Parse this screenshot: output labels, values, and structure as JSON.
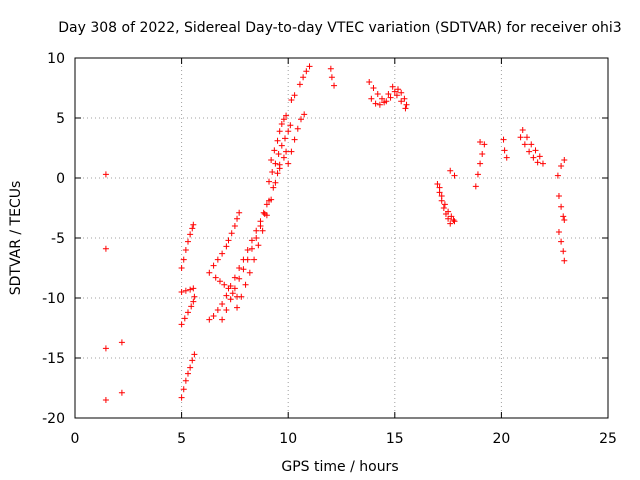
{
  "chart_data": {
    "type": "scatter",
    "title": "Day 308 of 2022, Sidereal Day-to-day VTEC variation (SDTVAR) for receiver ohi3",
    "xlabel": "GPS time / hours",
    "ylabel": "SDTVAR / TECUs",
    "xlim": [
      0,
      25
    ],
    "ylim": [
      -20,
      10
    ],
    "xticks": [
      0,
      5,
      10,
      15,
      20,
      25
    ],
    "yticks": [
      -20,
      -15,
      -10,
      -5,
      0,
      5,
      10
    ],
    "xtick_labels": [
      "0",
      "5",
      "10",
      "15",
      "20",
      "25"
    ],
    "ytick_labels": [
      "-20",
      "-15",
      "-10",
      "-5",
      "0",
      "5",
      "10"
    ],
    "grid": true,
    "marker": "+",
    "series": [
      {
        "name": "SDTVAR",
        "color": "#ff0000",
        "points": [
          [
            1.45,
            0.3
          ],
          [
            1.45,
            -5.9
          ],
          [
            1.45,
            -14.2
          ],
          [
            1.45,
            -18.5
          ],
          [
            2.2,
            -13.7
          ],
          [
            2.2,
            -17.9
          ],
          [
            5.0,
            -18.3
          ],
          [
            5.1,
            -17.6
          ],
          [
            5.2,
            -16.9
          ],
          [
            5.3,
            -16.3
          ],
          [
            5.4,
            -15.8
          ],
          [
            5.5,
            -15.2
          ],
          [
            5.6,
            -14.7
          ],
          [
            5.0,
            -12.2
          ],
          [
            5.15,
            -11.7
          ],
          [
            5.3,
            -11.2
          ],
          [
            5.45,
            -10.7
          ],
          [
            5.55,
            -10.3
          ],
          [
            5.6,
            -9.9
          ],
          [
            5.0,
            -9.5
          ],
          [
            5.2,
            -9.4
          ],
          [
            5.4,
            -9.3
          ],
          [
            5.55,
            -9.2
          ],
          [
            5.0,
            -7.5
          ],
          [
            5.1,
            -6.8
          ],
          [
            5.2,
            -6.0
          ],
          [
            5.3,
            -5.3
          ],
          [
            5.4,
            -4.7
          ],
          [
            5.5,
            -4.2
          ],
          [
            5.55,
            -3.9
          ],
          [
            6.3,
            -11.8
          ],
          [
            6.5,
            -11.5
          ],
          [
            6.7,
            -11.0
          ],
          [
            6.9,
            -10.5
          ],
          [
            7.1,
            -9.8
          ],
          [
            7.3,
            -9.0
          ],
          [
            7.5,
            -8.3
          ],
          [
            7.7,
            -7.5
          ],
          [
            7.9,
            -6.8
          ],
          [
            8.1,
            -6.0
          ],
          [
            8.3,
            -5.2
          ],
          [
            8.5,
            -4.4
          ],
          [
            8.7,
            -3.6
          ],
          [
            8.85,
            -2.9
          ],
          [
            9.0,
            -2.2
          ],
          [
            6.3,
            -7.9
          ],
          [
            6.5,
            -7.3
          ],
          [
            6.7,
            -6.8
          ],
          [
            6.9,
            -6.3
          ],
          [
            7.1,
            -5.7
          ],
          [
            7.2,
            -5.2
          ],
          [
            7.35,
            -4.6
          ],
          [
            7.5,
            -4.0
          ],
          [
            7.6,
            -3.4
          ],
          [
            7.7,
            -2.9
          ],
          [
            6.9,
            -11.8
          ],
          [
            7.1,
            -11.0
          ],
          [
            7.3,
            -10.1
          ],
          [
            7.5,
            -9.2
          ],
          [
            7.7,
            -8.4
          ],
          [
            7.9,
            -7.6
          ],
          [
            8.1,
            -6.8
          ],
          [
            8.3,
            -5.9
          ],
          [
            8.5,
            -5.0
          ],
          [
            8.7,
            -4.0
          ],
          [
            8.9,
            -3.0
          ],
          [
            9.1,
            -1.9
          ],
          [
            9.3,
            -0.8
          ],
          [
            9.5,
            0.4
          ],
          [
            9.6,
            1.1
          ],
          [
            6.6,
            -8.3
          ],
          [
            6.8,
            -8.6
          ],
          [
            7.0,
            -8.9
          ],
          [
            7.2,
            -9.2
          ],
          [
            7.4,
            -9.6
          ],
          [
            7.6,
            -9.9
          ],
          [
            7.6,
            -10.8
          ],
          [
            7.8,
            -9.9
          ],
          [
            8.0,
            -8.9
          ],
          [
            8.2,
            -7.9
          ],
          [
            8.4,
            -6.8
          ],
          [
            8.6,
            -5.6
          ],
          [
            8.8,
            -4.4
          ],
          [
            9.0,
            -3.1
          ],
          [
            9.2,
            -1.8
          ],
          [
            9.4,
            -0.4
          ],
          [
            9.6,
            0.8
          ],
          [
            9.8,
            1.7
          ],
          [
            9.9,
            2.2
          ],
          [
            9.2,
            1.5
          ],
          [
            9.35,
            2.3
          ],
          [
            9.5,
            3.1
          ],
          [
            9.6,
            3.9
          ],
          [
            9.7,
            4.5
          ],
          [
            9.8,
            4.9
          ],
          [
            9.9,
            5.2
          ],
          [
            9.1,
            -0.3
          ],
          [
            9.25,
            0.5
          ],
          [
            9.4,
            1.2
          ],
          [
            9.55,
            2.0
          ],
          [
            9.7,
            2.7
          ],
          [
            9.85,
            3.3
          ],
          [
            10.0,
            3.9
          ],
          [
            10.1,
            4.4
          ],
          [
            10.0,
            1.2
          ],
          [
            10.15,
            2.2
          ],
          [
            10.3,
            3.2
          ],
          [
            10.45,
            4.1
          ],
          [
            10.6,
            4.9
          ],
          [
            10.75,
            5.3
          ],
          [
            10.15,
            6.5
          ],
          [
            10.3,
            6.9
          ],
          [
            10.55,
            7.8
          ],
          [
            10.7,
            8.4
          ],
          [
            10.85,
            8.9
          ],
          [
            11.0,
            9.3
          ],
          [
            12.0,
            9.1
          ],
          [
            12.05,
            8.4
          ],
          [
            12.15,
            7.7
          ],
          [
            13.8,
            8.0
          ],
          [
            14.0,
            7.5
          ],
          [
            14.2,
            7.0
          ],
          [
            14.4,
            6.6
          ],
          [
            14.6,
            6.4
          ],
          [
            14.8,
            6.7
          ],
          [
            15.0,
            7.2
          ],
          [
            15.15,
            7.4
          ],
          [
            15.3,
            7.1
          ],
          [
            15.45,
            6.6
          ],
          [
            15.55,
            6.1
          ],
          [
            13.9,
            6.6
          ],
          [
            14.1,
            6.2
          ],
          [
            14.3,
            6.1
          ],
          [
            14.5,
            6.3
          ],
          [
            14.7,
            7.0
          ],
          [
            14.9,
            7.6
          ],
          [
            15.1,
            6.9
          ],
          [
            15.3,
            6.4
          ],
          [
            15.5,
            5.8
          ],
          [
            17.0,
            -0.5
          ],
          [
            17.1,
            -1.2
          ],
          [
            17.2,
            -1.9
          ],
          [
            17.3,
            -2.5
          ],
          [
            17.4,
            -3.0
          ],
          [
            17.5,
            -3.4
          ],
          [
            17.6,
            -3.8
          ],
          [
            17.75,
            -3.5
          ],
          [
            17.1,
            -0.8
          ],
          [
            17.2,
            -1.5
          ],
          [
            17.35,
            -2.2
          ],
          [
            17.5,
            -2.8
          ],
          [
            17.65,
            -3.2
          ],
          [
            17.8,
            -3.6
          ],
          [
            17.6,
            0.6
          ],
          [
            17.8,
            0.2
          ],
          [
            18.8,
            -0.7
          ],
          [
            18.9,
            0.3
          ],
          [
            19.0,
            1.2
          ],
          [
            19.1,
            2.0
          ],
          [
            19.0,
            3.0
          ],
          [
            19.2,
            2.8
          ],
          [
            20.1,
            3.2
          ],
          [
            20.15,
            2.3
          ],
          [
            20.25,
            1.7
          ],
          [
            21.0,
            4.0
          ],
          [
            21.2,
            3.4
          ],
          [
            21.4,
            2.8
          ],
          [
            21.6,
            2.3
          ],
          [
            21.8,
            1.8
          ],
          [
            21.95,
            1.2
          ],
          [
            20.9,
            3.4
          ],
          [
            21.1,
            2.8
          ],
          [
            21.3,
            2.2
          ],
          [
            21.5,
            1.7
          ],
          [
            21.7,
            1.3
          ],
          [
            22.7,
            -1.5
          ],
          [
            22.8,
            -2.4
          ],
          [
            22.9,
            -3.2
          ],
          [
            22.95,
            -3.5
          ],
          [
            22.7,
            -4.5
          ],
          [
            22.8,
            -5.3
          ],
          [
            22.9,
            -6.1
          ],
          [
            22.95,
            -6.9
          ],
          [
            22.65,
            0.2
          ],
          [
            22.8,
            1.0
          ],
          [
            22.95,
            1.5
          ]
        ]
      }
    ]
  }
}
